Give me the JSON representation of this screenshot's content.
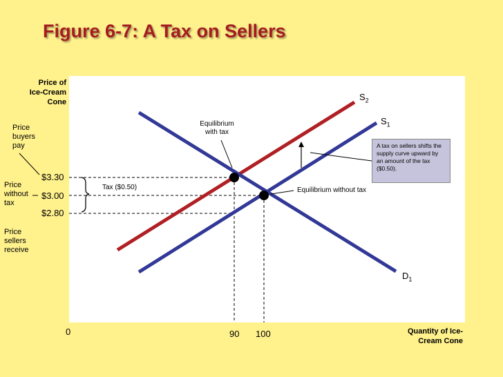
{
  "title": "Figure 6-7: A Tax on Sellers",
  "y_axis_title": [
    "Price of",
    "Ice-Cream",
    "Cone"
  ],
  "x_axis_title": [
    "Quantity of Ice-",
    "Cream Cone"
  ],
  "origin_label": "0",
  "price_labels": {
    "buyers_pay": "$3.30",
    "without_tax": "$3.00",
    "sellers_receive": "$2.80"
  },
  "side_labels": {
    "buyers": [
      "Price",
      "buyers",
      "pay"
    ],
    "without": [
      "Price",
      "without",
      "tax"
    ],
    "sellers": [
      "Price",
      "sellers",
      "receive"
    ]
  },
  "quantity_labels": {
    "with_tax": "90",
    "without_tax": "100"
  },
  "tax_label": "Tax ($0.50)",
  "equilibrium_with_tax": [
    "Equilibrium",
    "with tax"
  ],
  "equilibrium_without_tax": "Equilibrium without tax",
  "curves": {
    "s2": {
      "letter": "S",
      "sub": "2"
    },
    "s1": {
      "letter": "S",
      "sub": "1"
    },
    "d1": {
      "letter": "D",
      "sub": "1"
    }
  },
  "note": "A tax on sellers shifts the supply curve upward by an amount of the tax ($0.50).",
  "colors": {
    "supply_after_tax": "#B01F24",
    "supply_demand": "#323896",
    "background": "#FFF18C",
    "note_box": "#C6C4DC",
    "title": "#A51C20"
  }
}
